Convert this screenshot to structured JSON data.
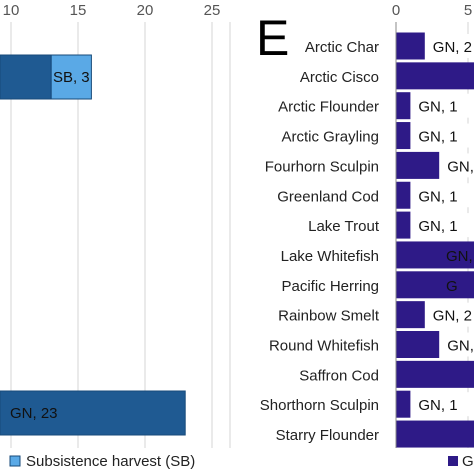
{
  "chart_data": [
    {
      "type": "bar",
      "orientation": "horizontal",
      "stacked": true,
      "xlim": [
        0,
        25
      ],
      "ticks": [
        "10",
        "15",
        "20",
        "25"
      ],
      "grid": true,
      "rows": [
        {
          "GN": 13,
          "SB": 3,
          "data_labels": [
            "",
            "SB, 3"
          ]
        },
        {
          "GN": 23,
          "SB": 0,
          "data_labels": [
            "GN, 23",
            ""
          ]
        }
      ],
      "series": [
        {
          "key": "GN",
          "color": "#1f5a92"
        },
        {
          "key": "SB",
          "color": "#5aa9e6",
          "name": "Subsistence harvest (SB)"
        }
      ],
      "legend": {
        "position": "bottom",
        "items": [
          "Subsistence harvest (SB)"
        ]
      }
    },
    {
      "type": "bar",
      "orientation": "horizontal",
      "stacked": true,
      "panel_label": "E",
      "ticks": [
        "0",
        "5"
      ],
      "grid": true,
      "categories": [
        "Arctic Char",
        "Arctic Cisco",
        "Arctic Flounder",
        "Arctic Grayling",
        "Fourhorn Sculpin",
        "Greenland Cod",
        "Lake Trout",
        "Lake Whitefish",
        "Pacific Herring",
        "Rainbow Smelt",
        "Round Whitefish",
        "Saffron Cod",
        "Shorthorn Sculpin",
        "Starry Flounder"
      ],
      "series": [
        {
          "key": "GN",
          "color": "#2e1a87",
          "values": [
            2,
            8,
            1,
            1,
            3,
            1,
            1,
            8,
            8,
            2,
            3,
            8,
            1,
            8
          ]
        }
      ],
      "data_labels": [
        "GN, 2",
        "",
        "GN, 1",
        "GN, 1",
        "GN,",
        "GN, 1",
        "GN, 1",
        "GN,",
        "G",
        "GN, 2",
        "GN,",
        "",
        "GN, 1",
        ""
      ],
      "legend": {
        "position": "bottom",
        "items": [
          "G"
        ]
      }
    }
  ]
}
